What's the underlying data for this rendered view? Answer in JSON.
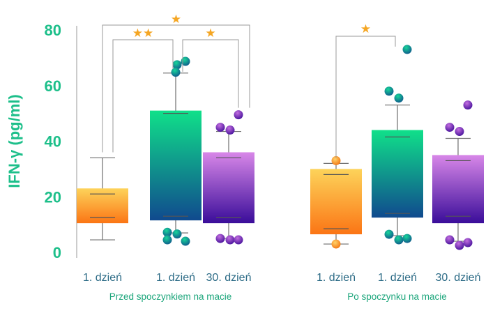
{
  "chart_data": {
    "type": "bar",
    "ylabel": "IFN-γ (pg/ml)",
    "ylim": [
      0,
      80
    ],
    "yticks": [
      "0",
      "20",
      "40",
      "60",
      "80"
    ],
    "groups": [
      {
        "label": "Przed spoczynkiem na macie",
        "boxes": [
          {
            "label": "1. dzień",
            "palette": "orange",
            "q1": 10.5,
            "median": 21,
            "q3": 23,
            "lower": 4.5,
            "upper": 34,
            "lower_cap": 12.5,
            "upper_cap": 21,
            "points": []
          },
          {
            "label": "1. dzień",
            "palette": "green-blue",
            "q1": 11.5,
            "median": 50,
            "q3": 51,
            "lower": 7,
            "upper": 64.5,
            "lower_cap": 13,
            "upper_cap": 50,
            "points": [
              7.2,
              6.6,
              4,
              4.5,
              67.5,
              68.7,
              64.8
            ]
          },
          {
            "label": "30. dzień",
            "palette": "purple",
            "q1": 10.5,
            "median": 34,
            "q3": 36,
            "lower": 5,
            "upper": 43.5,
            "lower_cap": 12.5,
            "upper_cap": 34,
            "points": [
              5,
              4.5,
              4.5,
              45,
              44,
              49.5
            ]
          }
        ]
      },
      {
        "label": "Po spoczynku na macie",
        "boxes": [
          {
            "label": "1. dzień",
            "palette": "orange",
            "q1": 6.5,
            "median": 28,
            "q3": 30,
            "lower": 3,
            "upper": 32,
            "lower_cap": 8.5,
            "upper_cap": 28,
            "points": [
              33,
              3
            ]
          },
          {
            "label": "1. dzień",
            "palette": "green-blue",
            "q1": 12.5,
            "median": 41.5,
            "q3": 44,
            "lower": 6,
            "upper": 53,
            "lower_cap": 14,
            "upper_cap": 41.5,
            "points": [
              6.5,
              4.5,
              5,
              58,
              55.5,
              73
            ]
          },
          {
            "label": "30. dzień",
            "palette": "purple",
            "q1": 10.5,
            "median": 33,
            "q3": 35,
            "lower": 4,
            "upper": 41,
            "lower_cap": 13,
            "upper_cap": 33,
            "points": [
              4.5,
              2.5,
              3.5,
              45,
              43.5,
              53
            ]
          }
        ]
      }
    ],
    "significance": [
      {
        "group": 0,
        "from": 0,
        "to": 2,
        "stars": "★"
      },
      {
        "group": 0,
        "from": 0,
        "to": 1,
        "stars": "★★"
      },
      {
        "group": 0,
        "from": 1,
        "to": 2,
        "stars": "★"
      },
      {
        "group": 1,
        "from": 0,
        "to": 1,
        "stars": "★"
      }
    ],
    "colors": {
      "orange_top": "#fdd35a",
      "orange_bottom": "#fb7515",
      "green_top": "#10e08a",
      "green_bottom": "#104a8e",
      "purple_top": "#d887e8",
      "purple_bottom": "#3a0d9a",
      "axis": "#999999",
      "whisker": "#777777",
      "star": "#f5a623",
      "text": "#1dbf8a"
    }
  }
}
